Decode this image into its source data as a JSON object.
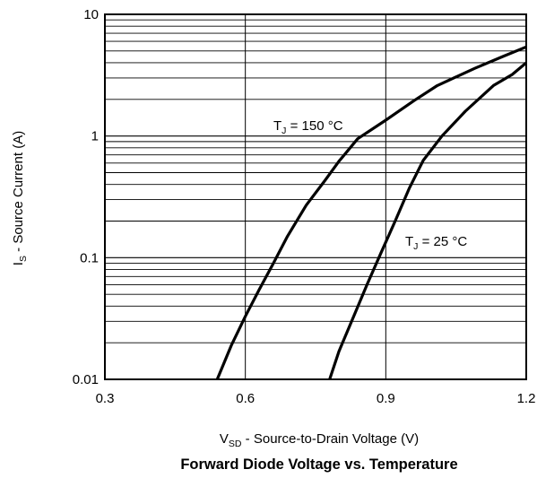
{
  "chart_data": {
    "type": "line",
    "title": "Forward Diode Voltage vs. Temperature",
    "xlabel": {
      "main": "V",
      "sub": "SD",
      "rest": " - Source-to-Drain Voltage (V)"
    },
    "ylabel": {
      "main": "I",
      "sub": "S",
      "rest": " - Source Current (A)"
    },
    "xlim": [
      0.3,
      1.2
    ],
    "ylim": [
      0.01,
      10
    ],
    "yscale": "log",
    "grid": true,
    "x_ticks": [
      {
        "value": 0.3,
        "label": "0.3"
      },
      {
        "value": 0.6,
        "label": "0.6"
      },
      {
        "value": 0.9,
        "label": "0.9"
      },
      {
        "value": 1.2,
        "label": "1.2"
      }
    ],
    "y_ticks": [
      {
        "value": 0.01,
        "label": "0.01"
      },
      {
        "value": 0.1,
        "label": "0.1"
      },
      {
        "value": 1,
        "label": "1"
      },
      {
        "value": 10,
        "label": "10"
      }
    ],
    "series": [
      {
        "label_main": "T",
        "label_sub": "J",
        "label_rest": " = 150 °C",
        "x": [
          0.54,
          0.57,
          0.6,
          0.63,
          0.66,
          0.69,
          0.73,
          0.77,
          0.8,
          0.84,
          0.9,
          0.96,
          1.01,
          1.09,
          1.15,
          1.2
        ],
        "y": [
          0.01,
          0.019,
          0.033,
          0.055,
          0.09,
          0.15,
          0.27,
          0.43,
          0.62,
          0.95,
          1.35,
          1.95,
          2.6,
          3.6,
          4.5,
          5.4
        ]
      },
      {
        "label_main": "T",
        "label_sub": "J",
        "label_rest": " = 25 °C",
        "x": [
          0.78,
          0.8,
          0.83,
          0.86,
          0.89,
          0.92,
          0.95,
          0.98,
          1.02,
          1.07,
          1.13,
          1.17,
          1.2
        ],
        "y": [
          0.01,
          0.017,
          0.032,
          0.06,
          0.11,
          0.2,
          0.37,
          0.63,
          1.0,
          1.6,
          2.6,
          3.2,
          4.0
        ]
      }
    ]
  }
}
